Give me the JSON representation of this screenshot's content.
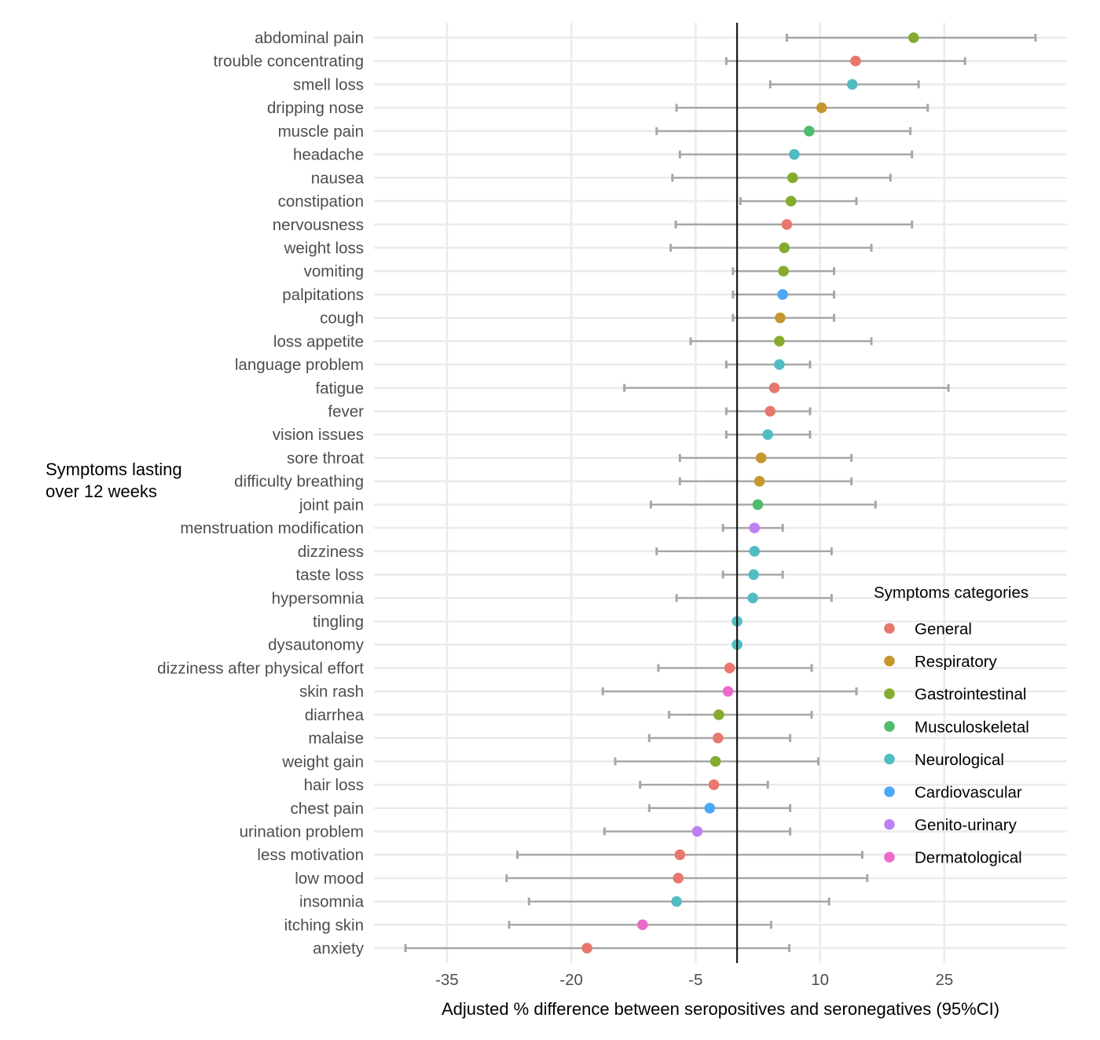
{
  "chart_data": {
    "type": "scatter",
    "subtype": "forest-plot",
    "title": "",
    "xlabel": "Adjusted % difference between seropositives and seronegatives (95%CI)",
    "ylabel": "Symptoms lasting\nover 12 weeks",
    "ylabel_lines": [
      "Symptoms lasting",
      "over 12 weeks"
    ],
    "xlim": [
      -43.8,
      39.8
    ],
    "xticks": [
      -35,
      -20,
      -5,
      10,
      25
    ],
    "xtick_labels": [
      "-35",
      "-20",
      "-5",
      "10",
      "25"
    ],
    "reference_line": 0,
    "grid": true,
    "legend": {
      "title": "Symptoms categories",
      "placement": "right-inside-bottom",
      "entries": [
        {
          "name": "General",
          "color": "#E8776D"
        },
        {
          "name": "Respiratory",
          "color": "#C4972F"
        },
        {
          "name": "Gastrointestinal",
          "color": "#85AB2E"
        },
        {
          "name": "Musculoskeletal",
          "color": "#4FBB6C"
        },
        {
          "name": "Neurological",
          "color": "#52BCC3"
        },
        {
          "name": "Cardiovascular",
          "color": "#4BA7F8"
        },
        {
          "name": "Genito-urinary",
          "color": "#BE80F5"
        },
        {
          "name": "Dermatological",
          "color": "#EB6BCB"
        }
      ]
    },
    "errorbar_color": "#A6A6A6",
    "rows": [
      {
        "symptom": "abdominal pain",
        "category": "Gastrointestinal",
        "estimate": 21.3,
        "lower": 6.0,
        "upper": 36.0
      },
      {
        "symptom": "trouble concentrating",
        "category": "General",
        "estimate": 14.3,
        "lower": -1.3,
        "upper": 27.5
      },
      {
        "symptom": "smell loss",
        "category": "Neurological",
        "estimate": 13.9,
        "lower": 4.0,
        "upper": 21.9
      },
      {
        "symptom": "dripping nose",
        "category": "Respiratory",
        "estimate": 10.2,
        "lower": -7.3,
        "upper": 23.0
      },
      {
        "symptom": "muscle pain",
        "category": "Musculoskeletal",
        "estimate": 8.7,
        "lower": -9.7,
        "upper": 20.9
      },
      {
        "symptom": "headache",
        "category": "Neurological",
        "estimate": 6.9,
        "lower": -6.9,
        "upper": 21.1
      },
      {
        "symptom": "nausea",
        "category": "Gastrointestinal",
        "estimate": 6.7,
        "lower": -7.8,
        "upper": 18.5
      },
      {
        "symptom": "constipation",
        "category": "Gastrointestinal",
        "estimate": 6.5,
        "lower": 0.4,
        "upper": 14.4
      },
      {
        "symptom": "nervousness",
        "category": "General",
        "estimate": 6.0,
        "lower": -7.4,
        "upper": 21.1
      },
      {
        "symptom": "weight loss",
        "category": "Gastrointestinal",
        "estimate": 5.7,
        "lower": -8.0,
        "upper": 16.2
      },
      {
        "symptom": "vomiting",
        "category": "Gastrointestinal",
        "estimate": 5.6,
        "lower": -0.5,
        "upper": 11.7
      },
      {
        "symptom": "palpitations",
        "category": "Cardiovascular",
        "estimate": 5.5,
        "lower": -0.5,
        "upper": 11.7
      },
      {
        "symptom": "cough",
        "category": "Respiratory",
        "estimate": 5.2,
        "lower": -0.5,
        "upper": 11.7
      },
      {
        "symptom": "loss appetite",
        "category": "Gastrointestinal",
        "estimate": 5.1,
        "lower": -5.6,
        "upper": 16.2
      },
      {
        "symptom": "language problem",
        "category": "Neurological",
        "estimate": 5.1,
        "lower": -1.3,
        "upper": 8.8
      },
      {
        "symptom": "fatigue",
        "category": "General",
        "estimate": 4.5,
        "lower": -13.6,
        "upper": 25.5
      },
      {
        "symptom": "fever",
        "category": "General",
        "estimate": 4.0,
        "lower": -1.3,
        "upper": 8.8
      },
      {
        "symptom": "vision issues",
        "category": "Neurological",
        "estimate": 3.7,
        "lower": -1.3,
        "upper": 8.8
      },
      {
        "symptom": "sore throat",
        "category": "Respiratory",
        "estimate": 2.9,
        "lower": -6.9,
        "upper": 13.8
      },
      {
        "symptom": "difficulty breathing",
        "category": "Respiratory",
        "estimate": 2.7,
        "lower": -6.9,
        "upper": 13.8
      },
      {
        "symptom": "joint pain",
        "category": "Musculoskeletal",
        "estimate": 2.5,
        "lower": -10.4,
        "upper": 16.7
      },
      {
        "symptom": "menstruation modification",
        "category": "Genito-urinary",
        "estimate": 2.1,
        "lower": -1.7,
        "upper": 5.5
      },
      {
        "symptom": "dizziness",
        "category": "Neurological",
        "estimate": 2.1,
        "lower": -9.7,
        "upper": 11.4
      },
      {
        "symptom": "taste loss",
        "category": "Neurological",
        "estimate": 2.0,
        "lower": -1.7,
        "upper": 5.5
      },
      {
        "symptom": "hypersomnia",
        "category": "Neurological",
        "estimate": 1.9,
        "lower": -7.3,
        "upper": 11.4
      },
      {
        "symptom": "tingling",
        "category": "Neurological",
        "estimate": 0.0,
        "lower": null,
        "upper": null
      },
      {
        "symptom": "dysautonomy",
        "category": "Neurological",
        "estimate": 0.0,
        "lower": null,
        "upper": null
      },
      {
        "symptom": "dizziness after physical effort",
        "category": "General",
        "estimate": -0.9,
        "lower": -9.5,
        "upper": 9.0
      },
      {
        "symptom": "skin rash",
        "category": "Dermatological",
        "estimate": -1.1,
        "lower": -16.2,
        "upper": 14.4
      },
      {
        "symptom": "diarrhea",
        "category": "Gastrointestinal",
        "estimate": -2.2,
        "lower": -8.2,
        "upper": 9.0
      },
      {
        "symptom": "malaise",
        "category": "General",
        "estimate": -2.3,
        "lower": -10.6,
        "upper": 6.4
      },
      {
        "symptom": "weight gain",
        "category": "Gastrointestinal",
        "estimate": -2.6,
        "lower": -14.7,
        "upper": 9.8
      },
      {
        "symptom": "hair loss",
        "category": "General",
        "estimate": -2.8,
        "lower": -11.7,
        "upper": 3.7
      },
      {
        "symptom": "chest pain",
        "category": "Cardiovascular",
        "estimate": -3.3,
        "lower": -10.6,
        "upper": 6.4
      },
      {
        "symptom": "urination problem",
        "category": "Genito-urinary",
        "estimate": -4.8,
        "lower": -16.0,
        "upper": 6.4
      },
      {
        "symptom": "less motivation",
        "category": "General",
        "estimate": -6.9,
        "lower": -26.5,
        "upper": 15.1
      },
      {
        "symptom": "low mood",
        "category": "General",
        "estimate": -7.1,
        "lower": -27.8,
        "upper": 15.7
      },
      {
        "symptom": "insomnia",
        "category": "Neurological",
        "estimate": -7.3,
        "lower": -25.1,
        "upper": 11.1
      },
      {
        "symptom": "itching skin",
        "category": "Dermatological",
        "estimate": -11.4,
        "lower": -27.5,
        "upper": 4.1
      },
      {
        "symptom": "anxiety",
        "category": "General",
        "estimate": -18.1,
        "lower": -40.0,
        "upper": 6.3
      }
    ]
  }
}
